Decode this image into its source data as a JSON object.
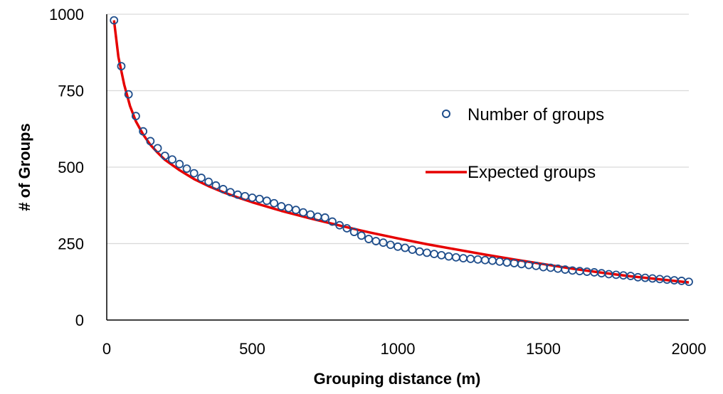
{
  "chart_data": {
    "type": "scatter",
    "title": "",
    "xlabel": "Grouping distance (m)",
    "ylabel": "# of Groups",
    "xlim": [
      0,
      2000
    ],
    "ylim": [
      0,
      1000
    ],
    "xticks": [
      0,
      500,
      1000,
      1500,
      2000
    ],
    "yticks": [
      0,
      250,
      500,
      750,
      1000
    ],
    "xtick_labels": [
      "0",
      "500",
      "1000",
      "1500",
      "2000"
    ],
    "ytick_labels": [
      "0",
      "250",
      "500",
      "750",
      "1000"
    ],
    "grid": "horizontal",
    "legend_position": "right",
    "series": [
      {
        "name": "Number of groups",
        "type": "scatter",
        "marker": "hollow-circle",
        "color": "#1f4e8c",
        "x": [
          25,
          50,
          75,
          100,
          125,
          150,
          175,
          200,
          225,
          250,
          275,
          300,
          325,
          350,
          375,
          400,
          425,
          450,
          475,
          500,
          525,
          550,
          575,
          600,
          625,
          650,
          675,
          700,
          725,
          750,
          775,
          800,
          825,
          850,
          875,
          900,
          925,
          950,
          975,
          1000,
          1025,
          1050,
          1075,
          1100,
          1125,
          1150,
          1175,
          1200,
          1225,
          1250,
          1275,
          1300,
          1325,
          1350,
          1375,
          1400,
          1425,
          1450,
          1475,
          1500,
          1525,
          1550,
          1575,
          1600,
          1625,
          1650,
          1675,
          1700,
          1725,
          1750,
          1775,
          1800,
          1825,
          1850,
          1875,
          1900,
          1925,
          1950,
          1975,
          2000
        ],
        "y": [
          980,
          830,
          738,
          667,
          617,
          585,
          562,
          537,
          525,
          510,
          495,
          480,
          465,
          452,
          440,
          428,
          418,
          410,
          405,
          400,
          396,
          390,
          382,
          372,
          366,
          360,
          352,
          345,
          338,
          335,
          322,
          310,
          300,
          288,
          276,
          265,
          258,
          253,
          246,
          240,
          236,
          230,
          224,
          220,
          216,
          212,
          208,
          205,
          202,
          200,
          198,
          196,
          194,
          191,
          188,
          186,
          183,
          180,
          177,
          173,
          171,
          168,
          165,
          162,
          160,
          158,
          156,
          153,
          150,
          148,
          146,
          144,
          140,
          138,
          136,
          134,
          132,
          130,
          128,
          125
        ]
      },
      {
        "name": "Expected groups",
        "type": "line",
        "color": "#e60000",
        "x": [
          25,
          40,
          60,
          80,
          100,
          125,
          150,
          175,
          200,
          250,
          300,
          350,
          400,
          450,
          500,
          600,
          700,
          800,
          900,
          1000,
          1100,
          1200,
          1300,
          1400,
          1500,
          1600,
          1700,
          1800,
          1900,
          2000
        ],
        "y": [
          980,
          860,
          770,
          700,
          650,
          607,
          573,
          547,
          524,
          490,
          461,
          438,
          418,
          401,
          385,
          357,
          332,
          309,
          287,
          267,
          248,
          231,
          214,
          198,
          183,
          168,
          155,
          143,
          133,
          123
        ]
      }
    ]
  }
}
